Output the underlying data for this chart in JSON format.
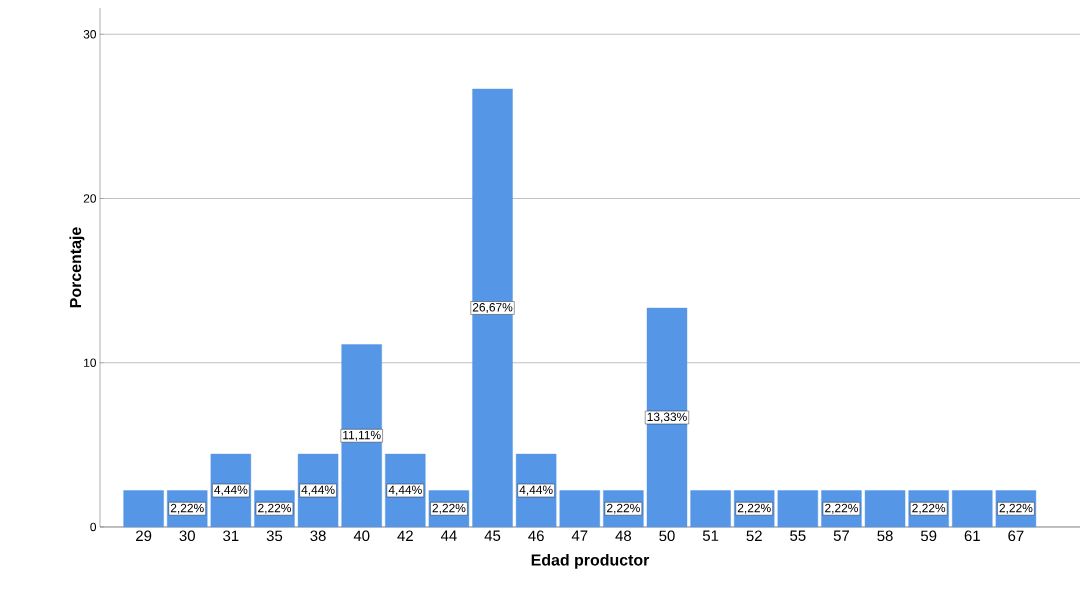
{
  "chart_data": {
    "type": "bar",
    "xlabel": "Edad productor",
    "ylabel": "Porcentaje",
    "categories": [
      "29",
      "30",
      "31",
      "35",
      "38",
      "40",
      "42",
      "44",
      "45",
      "46",
      "47",
      "48",
      "50",
      "51",
      "52",
      "55",
      "57",
      "58",
      "59",
      "61",
      "67"
    ],
    "values": [
      2.22,
      2.22,
      4.44,
      2.22,
      4.44,
      11.11,
      4.44,
      2.22,
      26.67,
      4.44,
      2.22,
      2.22,
      13.33,
      2.22,
      2.22,
      2.22,
      2.22,
      2.22,
      2.22,
      2.22,
      2.22
    ],
    "value_labels": [
      null,
      "2,22%",
      "4,44%",
      "2,22%",
      "4,44%",
      "11,11%",
      "4,44%",
      "2,22%",
      "26,67%",
      "4,44%",
      null,
      "2,22%",
      "13,33%",
      null,
      "2,22%",
      null,
      "2,22%",
      null,
      "2,22%",
      null,
      "2,22%"
    ],
    "color": "#5596e6",
    "ylim": [
      0,
      31.6
    ],
    "yticks": [
      0,
      10,
      20,
      30
    ],
    "grid": "y"
  }
}
